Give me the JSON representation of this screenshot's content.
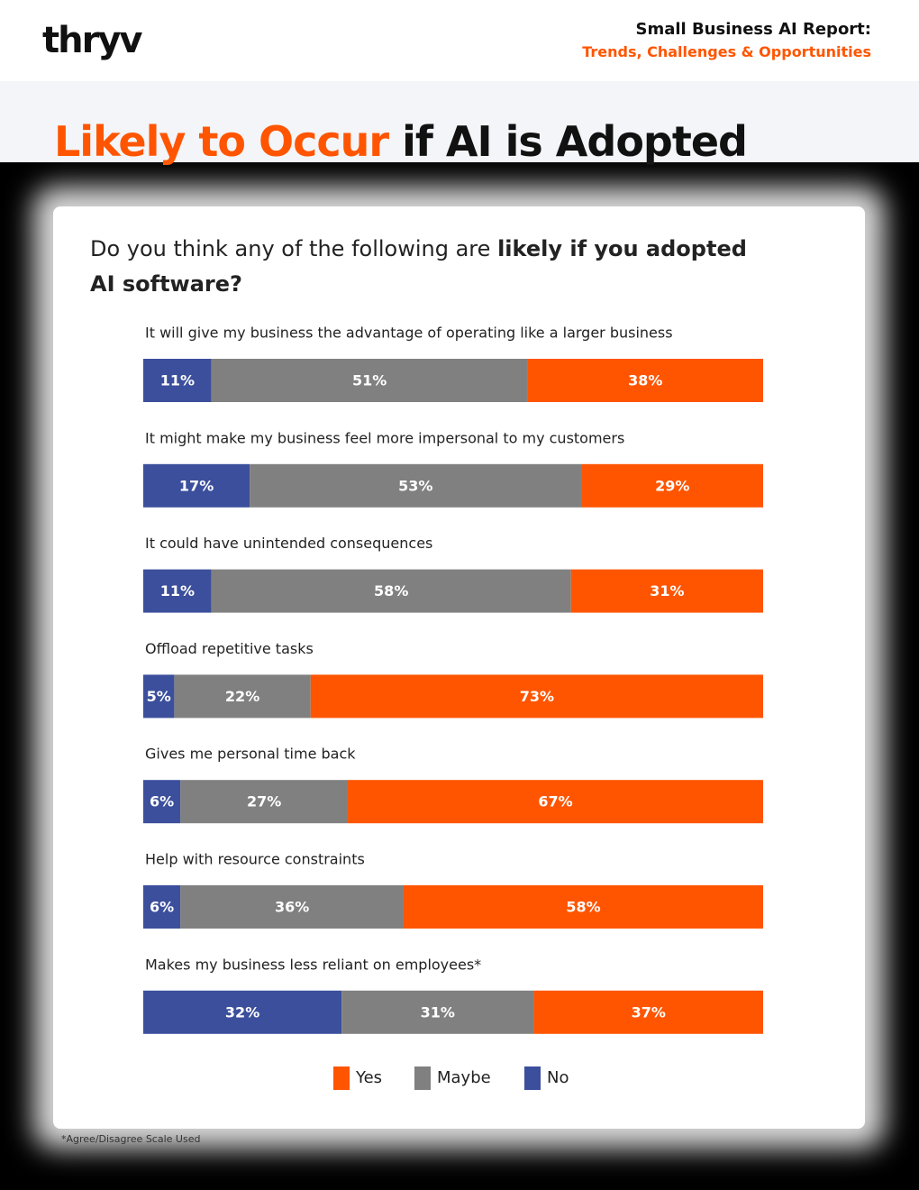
{
  "header": {
    "logo": "thryv",
    "report_title": "Small Business AI Report:",
    "report_subtitle": "Trends, Challenges & Opportunities"
  },
  "page_title": {
    "highlight": "Likely to Occur",
    "rest": "if AI is Adopted"
  },
  "chart_data": {
    "type": "stacked-bar-horizontal",
    "question": {
      "plain": "Do you think any of the following are",
      "bold": "likely if you adopted AI software?"
    },
    "categories": [
      "It will give my business the advantage of operating like a larger business",
      "It might make my business feel more impersonal to my customers",
      "It could have unintended consequences",
      "Offload repetitive tasks",
      "Gives me personal time back",
      "Help with resource constraints",
      "Makes my business less reliant on employees*"
    ],
    "series": [
      {
        "name": "No",
        "color": "#3b4f9c",
        "values": [
          11,
          17,
          11,
          5,
          6,
          6,
          32
        ],
        "value_labels": [
          "11%",
          "17%",
          "11%",
          "5%",
          "6%",
          "6%",
          "32%"
        ]
      },
      {
        "name": "Maybe",
        "color": "#808080",
        "values": [
          51,
          53,
          58,
          22,
          27,
          36,
          31
        ],
        "value_labels": [
          "51%",
          "53%",
          "58%",
          "22%",
          "27%",
          "36%",
          "31%"
        ]
      },
      {
        "name": "Yes",
        "color": "#ff5500",
        "values": [
          38,
          29,
          31,
          73,
          67,
          58,
          37
        ],
        "value_labels": [
          "38%",
          "29%",
          "31%",
          "73%",
          "67%",
          "58%",
          "37%"
        ]
      }
    ],
    "legend": "bottom",
    "footnote": "*Agree/Disagree Scale Used"
  }
}
